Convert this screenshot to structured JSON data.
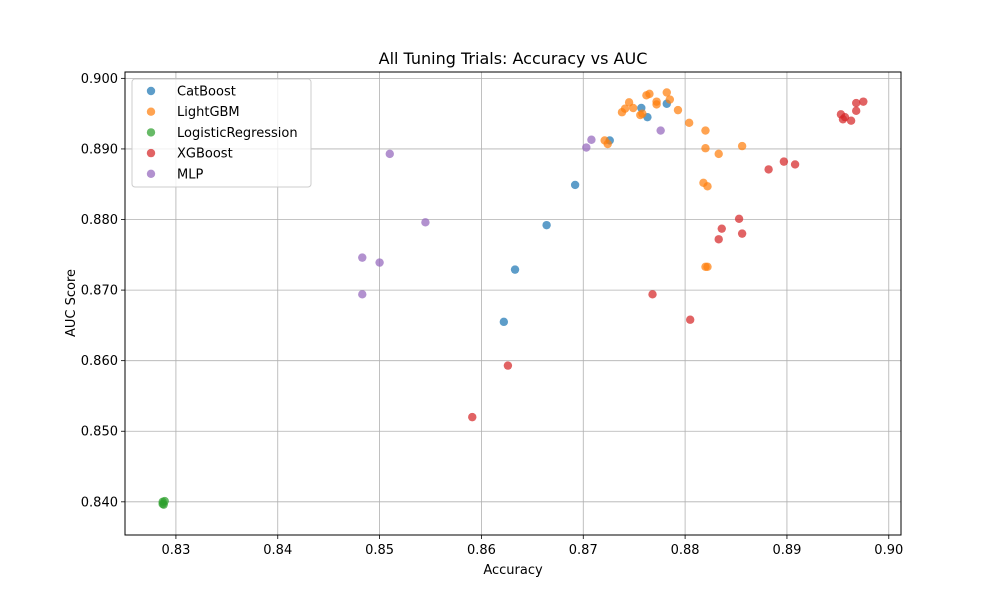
{
  "chart_data": {
    "type": "scatter",
    "title": "All Tuning Trials: Accuracy vs AUC",
    "xlabel": "Accuracy",
    "ylabel": "AUC Score",
    "xlim": [
      0.825,
      0.9012
    ],
    "ylim": [
      0.8353,
      0.9009
    ],
    "x_ticks": [
      "0.83",
      "0.84",
      "0.85",
      "0.86",
      "0.87",
      "0.88",
      "0.89",
      "0.90"
    ],
    "y_ticks": [
      "0.840",
      "0.850",
      "0.860",
      "0.870",
      "0.880",
      "0.890",
      "0.900"
    ],
    "grid": true,
    "legend_position": "top-left",
    "series": [
      {
        "name": "CatBoost",
        "color": "#1f77b4",
        "points": [
          [
            0.8726,
            0.8912
          ],
          [
            0.8757,
            0.8958
          ],
          [
            0.8763,
            0.8945
          ],
          [
            0.8782,
            0.8964
          ],
          [
            0.8692,
            0.8849
          ],
          [
            0.8664,
            0.8792
          ],
          [
            0.8633,
            0.8729
          ],
          [
            0.8622,
            0.8655
          ]
        ]
      },
      {
        "name": "LightGBM",
        "color": "#ff7f0e",
        "points": [
          [
            0.8745,
            0.8966
          ],
          [
            0.8738,
            0.8952
          ],
          [
            0.8741,
            0.8957
          ],
          [
            0.8749,
            0.8958
          ],
          [
            0.8762,
            0.8976
          ],
          [
            0.8765,
            0.8978
          ],
          [
            0.8772,
            0.8967
          ],
          [
            0.8772,
            0.8963
          ],
          [
            0.8782,
            0.898
          ],
          [
            0.8785,
            0.897
          ],
          [
            0.8793,
            0.8955
          ],
          [
            0.8756,
            0.8948
          ],
          [
            0.8758,
            0.895
          ],
          [
            0.8804,
            0.8937
          ],
          [
            0.882,
            0.8926
          ],
          [
            0.8721,
            0.8912
          ],
          [
            0.8724,
            0.8907
          ],
          [
            0.882,
            0.8901
          ],
          [
            0.8833,
            0.8893
          ],
          [
            0.8856,
            0.8904
          ],
          [
            0.8818,
            0.8852
          ],
          [
            0.8822,
            0.8847
          ],
          [
            0.882,
            0.8733
          ],
          [
            0.8822,
            0.8733
          ]
        ]
      },
      {
        "name": "LogisticRegression",
        "color": "#2ca02c",
        "points": [
          [
            0.8287,
            0.84
          ],
          [
            0.8288,
            0.8396
          ],
          [
            0.8289,
            0.8401
          ],
          [
            0.8287,
            0.8397
          ]
        ]
      },
      {
        "name": "XGBoost",
        "color": "#d62728",
        "points": [
          [
            0.8975,
            0.8967
          ],
          [
            0.8968,
            0.8965
          ],
          [
            0.8968,
            0.8954
          ],
          [
            0.8953,
            0.8949
          ],
          [
            0.8957,
            0.8945
          ],
          [
            0.8955,
            0.8942
          ],
          [
            0.8963,
            0.894
          ],
          [
            0.8897,
            0.8882
          ],
          [
            0.8908,
            0.8878
          ],
          [
            0.8882,
            0.8871
          ],
          [
            0.8853,
            0.8801
          ],
          [
            0.8836,
            0.8787
          ],
          [
            0.8833,
            0.8772
          ],
          [
            0.8856,
            0.878
          ],
          [
            0.8768,
            0.8694
          ],
          [
            0.8805,
            0.8658
          ],
          [
            0.8626,
            0.8593
          ],
          [
            0.8591,
            0.852
          ]
        ]
      },
      {
        "name": "MLP",
        "color": "#9467bd",
        "points": [
          [
            0.8708,
            0.8913
          ],
          [
            0.8703,
            0.8902
          ],
          [
            0.8776,
            0.8926
          ],
          [
            0.851,
            0.8893
          ],
          [
            0.8545,
            0.8796
          ],
          [
            0.8483,
            0.8746
          ],
          [
            0.85,
            0.8739
          ],
          [
            0.8483,
            0.8694
          ]
        ]
      }
    ]
  }
}
